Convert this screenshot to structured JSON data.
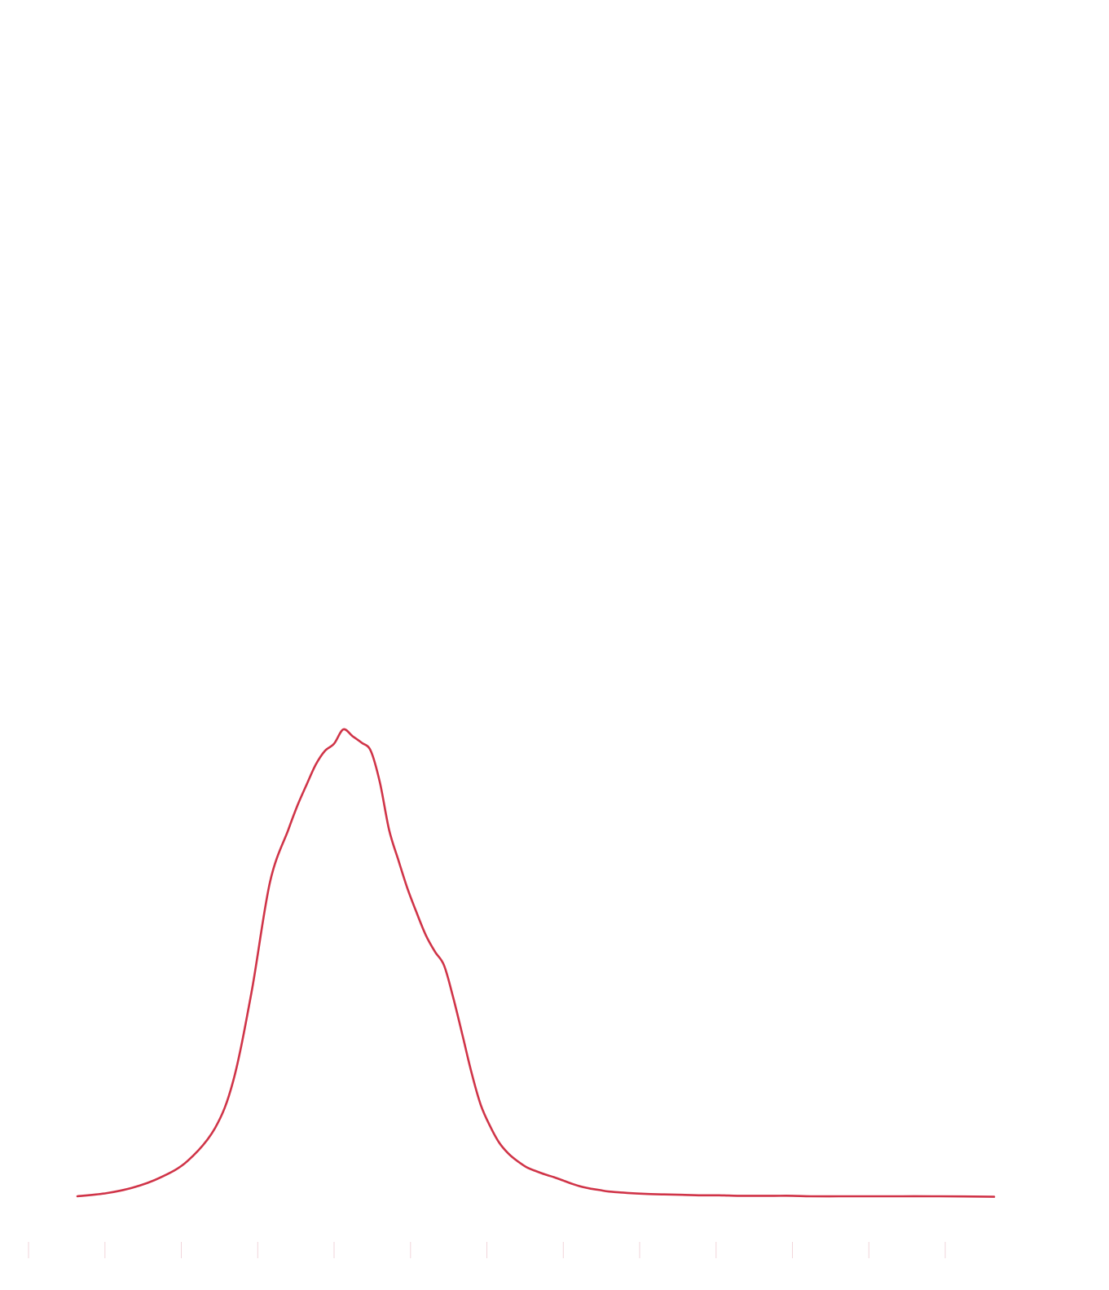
{
  "chart_data": {
    "type": "line",
    "title": "",
    "xlabel": "",
    "ylabel": "",
    "grid": false,
    "legend": "none",
    "xlim": [
      0,
      100
    ],
    "ylim": [
      0,
      100
    ],
    "series": [
      {
        "color": "#d03448",
        "x": [
          0,
          3,
          6,
          9,
          12,
          15,
          17,
          19,
          21,
          23,
          24,
          25,
          26,
          27,
          28,
          29,
          30,
          31,
          32,
          33,
          34,
          35,
          36,
          37,
          38,
          39,
          40,
          41,
          42,
          43,
          44,
          45,
          46,
          47,
          48,
          49,
          50,
          51,
          52,
          53,
          54,
          55,
          56,
          57,
          58,
          60,
          62,
          64,
          66,
          68,
          70,
          72,
          74,
          76,
          78,
          80,
          83,
          86,
          90,
          94,
          100
        ],
        "y": [
          0.0,
          0.6,
          1.8,
          3.9,
          7.4,
          14.3,
          24.3,
          43.0,
          66.0,
          77.0,
          82.1,
          86.5,
          90.7,
          93.6,
          95.1,
          98.1,
          96.7,
          95.3,
          93.6,
          86.9,
          77.0,
          70.7,
          64.7,
          59.6,
          54.9,
          51.4,
          48.5,
          41.7,
          33.9,
          25.9,
          19.2,
          14.8,
          11.3,
          9.0,
          7.4,
          6.1,
          5.3,
          4.6,
          4.0,
          3.3,
          2.6,
          2.0,
          1.6,
          1.3,
          1.0,
          0.7,
          0.5,
          0.4,
          0.3,
          0.2,
          0.2,
          0.1,
          0.1,
          0.1,
          0.1,
          0.0,
          0.0,
          0.0,
          0.0,
          0.0,
          -0.1
        ]
      }
    ]
  }
}
